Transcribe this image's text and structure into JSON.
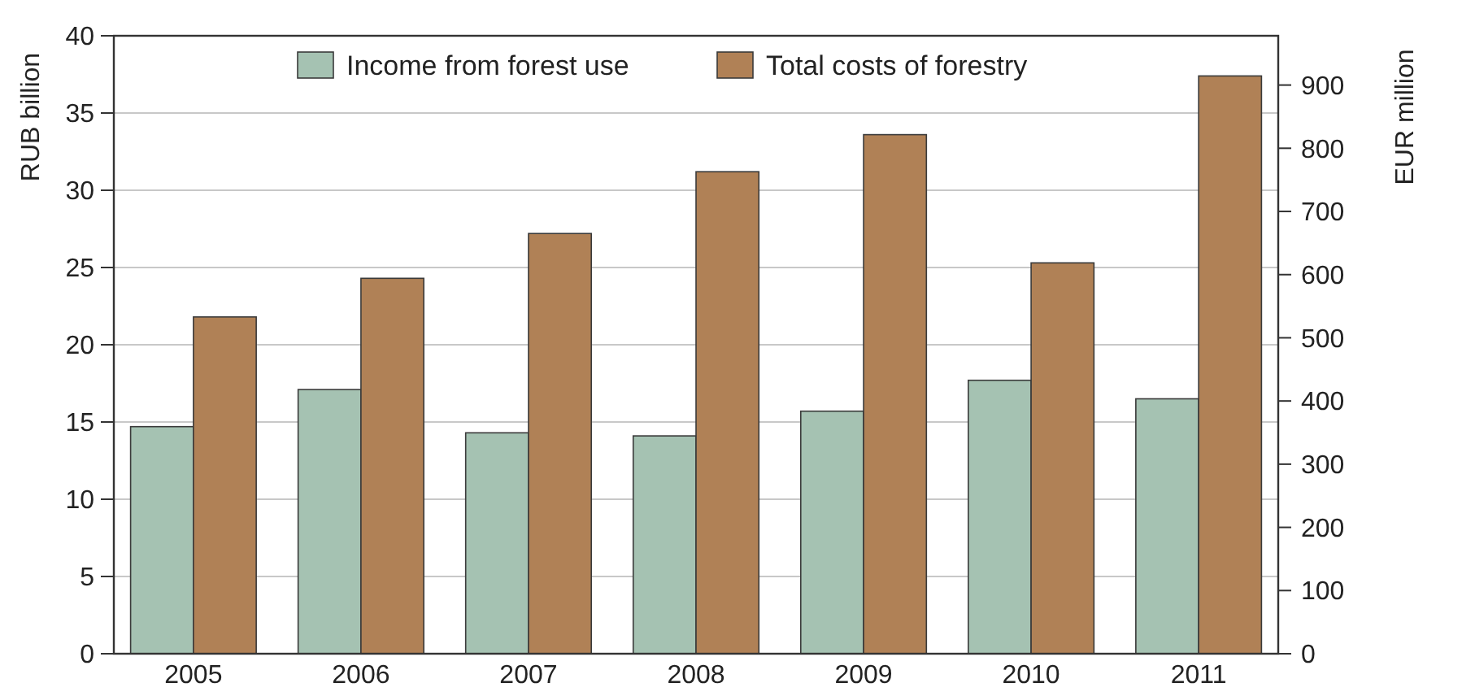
{
  "chart_data": {
    "type": "bar",
    "categories": [
      "2005",
      "2006",
      "2007",
      "2008",
      "2009",
      "2010",
      "2011"
    ],
    "series": [
      {
        "name": "Income from forest use",
        "color": "#a5c2b2",
        "values": [
          14.7,
          17.1,
          14.3,
          14.1,
          15.7,
          17.7,
          16.5
        ]
      },
      {
        "name": "Total costs of forestry",
        "color": "#b08156",
        "values": [
          21.8,
          24.3,
          27.2,
          31.2,
          33.6,
          25.3,
          37.4
        ]
      }
    ],
    "ylabel": "RUB billion",
    "y2label": "EUR million",
    "ylim": [
      0,
      40
    ],
    "yticks": [
      0,
      5,
      10,
      15,
      20,
      25,
      30,
      35,
      40
    ],
    "y2lim": [
      0,
      978
    ],
    "y2ticks": [
      0,
      100,
      200,
      300,
      400,
      500,
      600,
      700,
      800,
      900
    ],
    "grid": "y",
    "legend": "top"
  }
}
